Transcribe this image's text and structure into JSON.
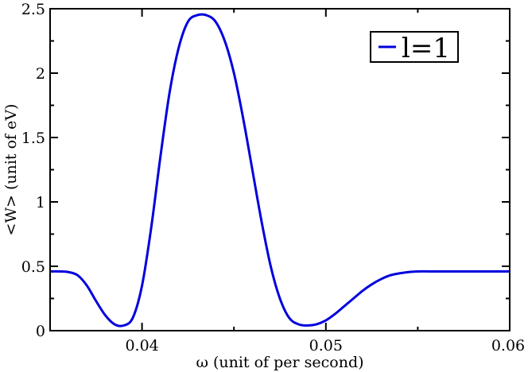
{
  "chart_data": {
    "type": "line",
    "title": "",
    "xlabel": "ω (unit of per second)",
    "ylabel": "<W> (unit of eV)",
    "xlim": [
      0.035,
      0.06
    ],
    "ylim": [
      0,
      2.5
    ],
    "xticks": [
      0.04,
      0.05,
      0.06
    ],
    "xtick_labels": [
      "0.04",
      "0.05",
      "0.06"
    ],
    "yticks": [
      0,
      0.5,
      1,
      1.5,
      2,
      2.5
    ],
    "ytick_labels": [
      "0",
      "0.5",
      "1",
      "1.5",
      "2",
      "2.5"
    ],
    "grid": false,
    "legend_position": "top-right",
    "series": [
      {
        "name": "l=1",
        "color": "#0000dd",
        "x": [
          0.035,
          0.0355,
          0.036,
          0.0365,
          0.037,
          0.0375,
          0.038,
          0.0385,
          0.039,
          0.0395,
          0.04,
          0.0405,
          0.041,
          0.0415,
          0.042,
          0.0425,
          0.043,
          0.0435,
          0.044,
          0.0445,
          0.045,
          0.0455,
          0.046,
          0.0465,
          0.047,
          0.0475,
          0.048,
          0.0485,
          0.049,
          0.0495,
          0.05,
          0.0505,
          0.051,
          0.0515,
          0.052,
          0.0525,
          0.053,
          0.0535,
          0.054,
          0.0545,
          0.055,
          0.056,
          0.057,
          0.058,
          0.059,
          0.06
        ],
        "y": [
          0.46,
          0.46,
          0.455,
          0.43,
          0.35,
          0.23,
          0.12,
          0.05,
          0.04,
          0.1,
          0.35,
          0.8,
          1.35,
          1.85,
          2.2,
          2.4,
          2.45,
          2.45,
          2.4,
          2.25,
          2.0,
          1.65,
          1.25,
          0.85,
          0.5,
          0.25,
          0.1,
          0.05,
          0.04,
          0.05,
          0.08,
          0.13,
          0.19,
          0.25,
          0.31,
          0.36,
          0.4,
          0.43,
          0.445,
          0.455,
          0.46,
          0.46,
          0.46,
          0.46,
          0.46,
          0.46
        ]
      }
    ]
  }
}
